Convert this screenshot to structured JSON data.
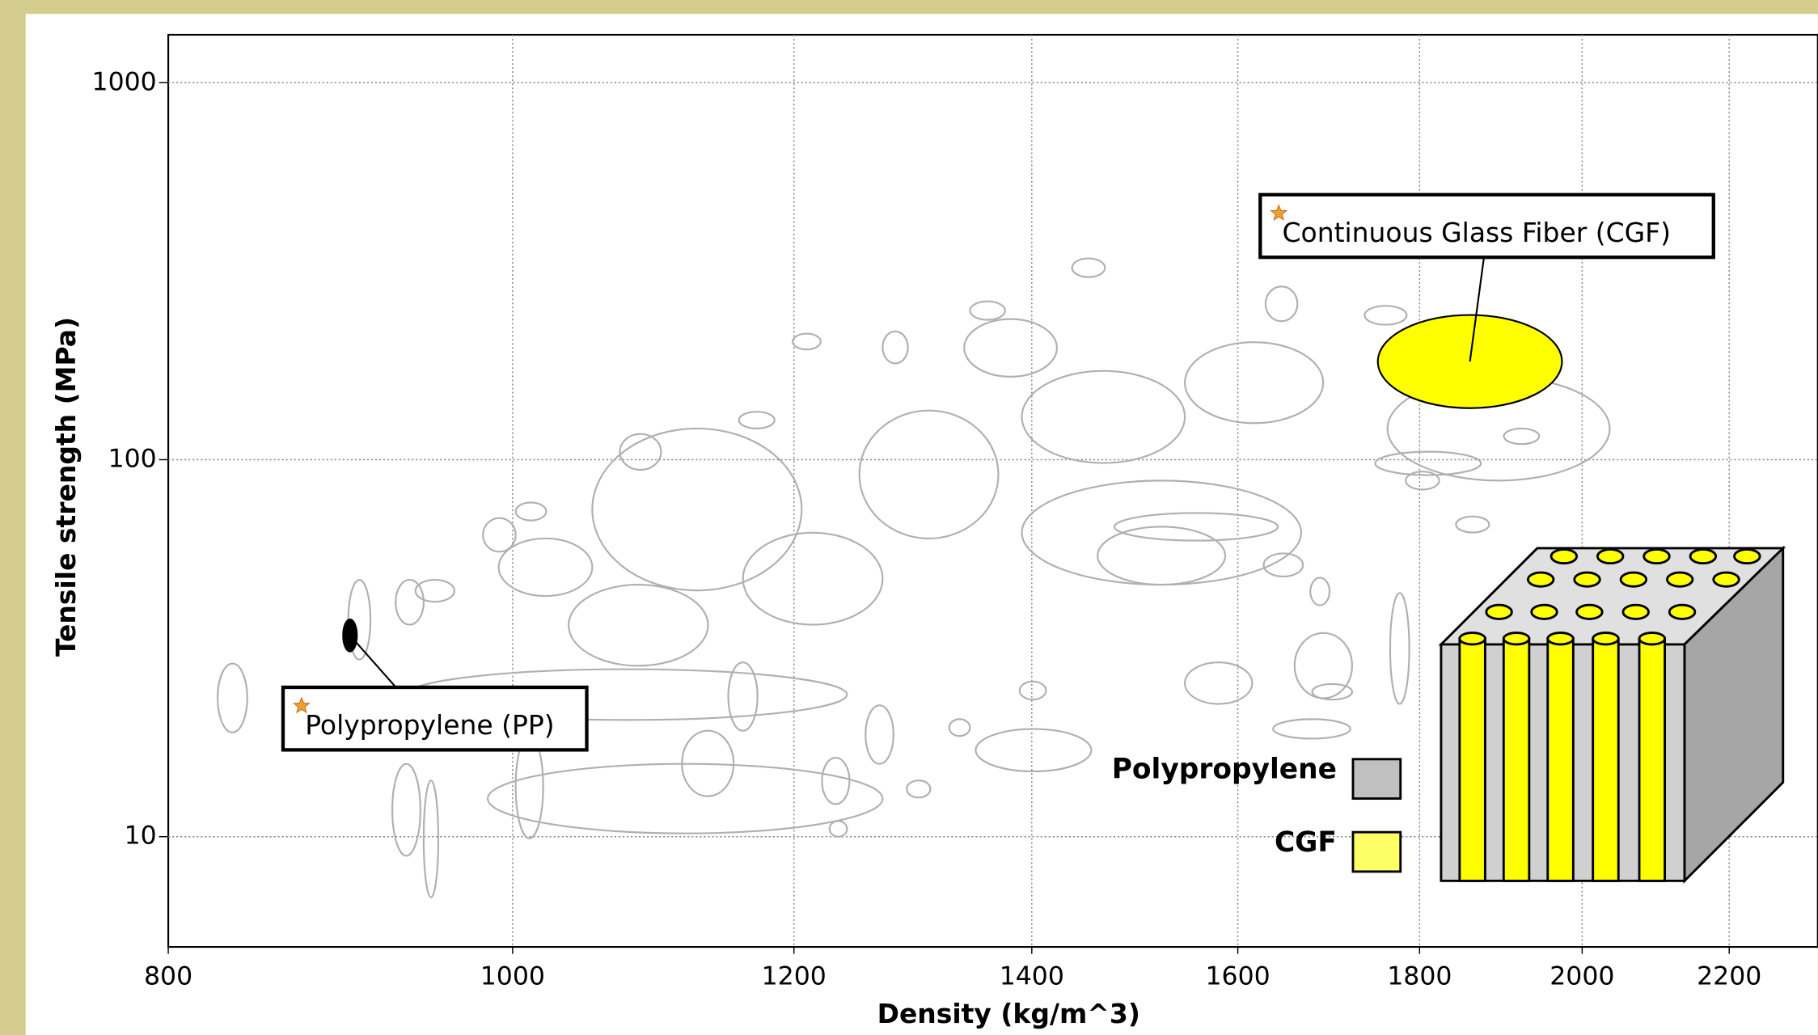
{
  "chart_data": {
    "type": "scatter",
    "x_label": "Density (kg/m^3)",
    "y_label": "Tensile strength (MPa)",
    "xlim": [
      800,
      2330
    ],
    "ylim": [
      5.1,
      1340
    ],
    "xticks": [
      800,
      1000,
      1200,
      1400,
      1600,
      1800,
      2000,
      2200
    ],
    "yticks": [
      10,
      100,
      1000
    ],
    "x_log": true,
    "y_log": true,
    "grid": true,
    "materials": {
      "color": "#b0b0b0",
      "x_min": [
        826,
        984,
        934,
        1391,
        1763,
        1546,
        1660,
        1350,
        1766,
        1843,
        1901,
        1437,
        1271,
        1199,
        1737,
        1629,
        1345,
        1158,
        1072,
        1002,
        981,
        939,
        927,
        899,
        925,
        944,
        1002,
        1150,
        1116,
        1222,
        1257,
        1291,
        1327,
        1389,
        1627,
        1677,
        1637,
        1679,
        1477,
        1053,
        1252,
        1391,
        1546,
        1340,
        991,
        1161,
        1461,
        1037,
        1784,
        1228,
        1749
      ],
      "x_max": [
        842,
        1271,
        1242,
        1667,
        2036,
        1615,
        1723,
        1455,
        1788,
        1883,
        1945,
        1468,
        1292,
        1221,
        1785,
        1663,
        1376,
        1185,
        1101,
        1022,
        1002,
        963,
        944,
        912,
        942,
        953,
        1020,
        1172,
        1154,
        1244,
        1280,
        1311,
        1345,
        1413,
        1669,
        1698,
        1721,
        1723,
        1642,
        1206,
        1370,
        1546,
        1691,
        1423,
        1053,
        1271,
        1587,
        1135,
        1823,
        1242,
        1873
      ],
      "y_min": [
        18.9,
        10.2,
        20.4,
        46.6,
        88,
        22.5,
        23.3,
        14.9,
        22.5,
        64.1,
        110,
        305,
        180,
        196,
        228,
        233,
        235,
        121,
        94,
        69,
        57,
        42,
        36.5,
        29.5,
        8.9,
        6.9,
        9.9,
        19.1,
        12.8,
        12.2,
        15.6,
        12.7,
        18.5,
        23.1,
        49,
        41.1,
        18.2,
        23.1,
        61,
        45,
        61.8,
        98,
        125,
        166,
        43.5,
        36.5,
        46.6,
        28.4,
        83.3,
        10,
        91
      ],
      "y_max": [
        28.8,
        15.6,
        27.8,
        88,
        166,
        29,
        34.7,
        19.3,
        44.3,
        70.7,
        121,
        342,
        219,
        216,
        256,
        288,
        263,
        134,
        117,
        77,
        70,
        48,
        48,
        48,
        15.6,
        14.1,
        18.6,
        29,
        19.1,
        16.2,
        22.3,
        14.1,
        20.5,
        25.8,
        56.4,
        48.6,
        20.5,
        25.4,
        72.2,
        121,
        135,
        172,
        205,
        236,
        61.8,
        64,
        66.4,
        46.6,
        93,
        11,
        105
      ]
    },
    "series": [
      {
        "name": "Polypropylene (PP)",
        "color": "#000000",
        "x": [
          896,
          904
        ],
        "y": [
          31,
          37.7
        ]
      },
      {
        "name": "Continuous Glass Fiber (CGF)",
        "color": "#ffff00",
        "x": [
          1752,
          1974
        ],
        "y": [
          137,
          242
        ]
      }
    ],
    "legend": [
      {
        "label": "Polypropylene",
        "color": "#c0c0c0"
      },
      {
        "label": "CGF",
        "color": "#ffff66"
      }
    ]
  }
}
